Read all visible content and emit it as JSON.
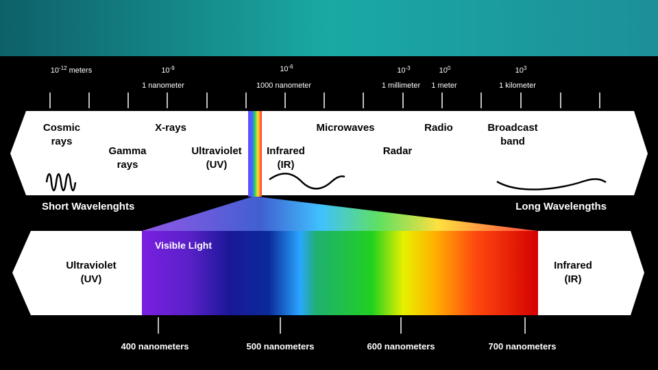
{
  "scale": [
    {
      "base": "10",
      "exp": "-12",
      "unit": "meters"
    },
    {
      "base": "10",
      "exp": "-9",
      "name": "1 nanometer"
    },
    {
      "base": "10",
      "exp": "-6",
      "name": "1000 nanometer"
    },
    {
      "base": "10",
      "exp": "-3",
      "name": "1 millimeter"
    },
    {
      "base": "10",
      "exp": "0",
      "name": "1 meter"
    },
    {
      "base": "10",
      "exp": "3",
      "name": "1 kilometer"
    }
  ],
  "bands": [
    {
      "lines": [
        "Cosmic",
        "rays"
      ]
    },
    {
      "lines": [
        "X-rays"
      ]
    },
    {
      "lines": [
        "Gamma",
        "rays"
      ]
    },
    {
      "lines": [
        "Ultraviolet",
        "(UV)"
      ]
    },
    {
      "lines": [
        "Infrared",
        "(IR)"
      ]
    },
    {
      "lines": [
        "Microwaves"
      ]
    },
    {
      "lines": [
        "Radio"
      ]
    },
    {
      "lines": [
        "Radar"
      ]
    },
    {
      "lines": [
        "Broadcast",
        "band"
      ]
    }
  ],
  "short_label": "Short Wavelenghts",
  "long_label": "Long Wavelengths",
  "visible": {
    "title": "Visible Light",
    "left": [
      "Ultraviolet",
      "(UV)"
    ],
    "right": [
      "Infrared",
      "(IR)"
    ],
    "ticks": [
      "400 nanometers",
      "500 nanometers",
      "600 nanometers",
      "700 nanometers"
    ]
  }
}
